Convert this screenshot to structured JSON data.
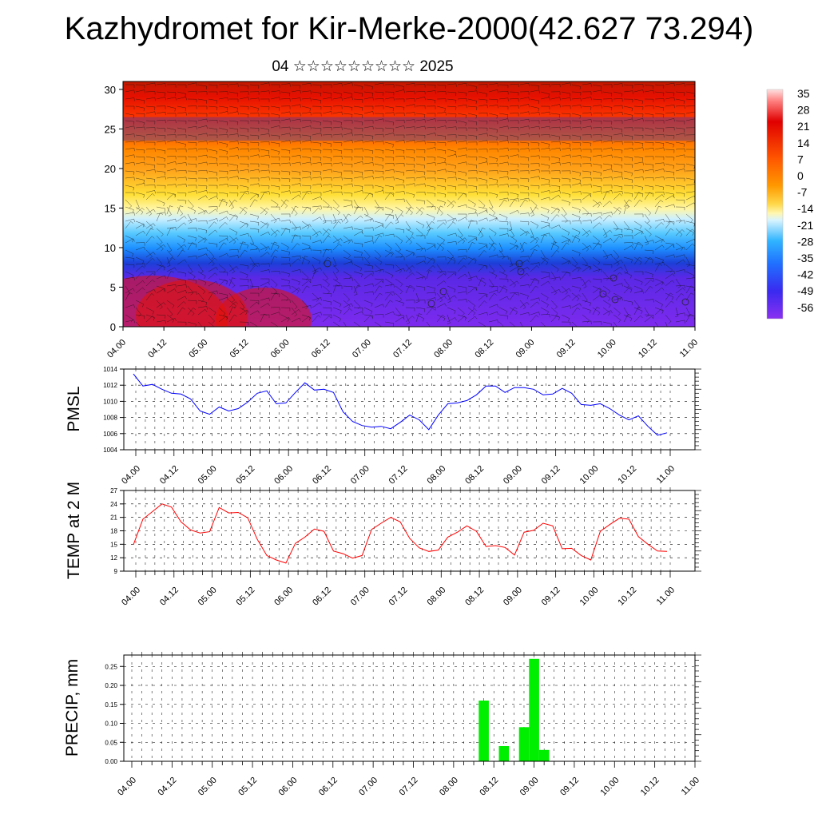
{
  "title": "Kazhydromet for Kir-Merke-2000(42.627 73.294)",
  "subtitle": "04 ☆☆☆☆☆☆☆☆☆ 2025",
  "time_ticks": [
    "04.00",
    "04.12",
    "05.00",
    "05.12",
    "06.00",
    "06.12",
    "07.00",
    "07.12",
    "08.00",
    "08.12",
    "09.00",
    "09.12",
    "10.00",
    "10.12",
    "11.00"
  ],
  "chart_data": [
    {
      "type": "heatmap",
      "name": "temperature cross-section with wind barbs",
      "ylim": [
        0,
        31
      ],
      "yticks": [
        0,
        5,
        10,
        15,
        20,
        25,
        30
      ],
      "legend_labels": [
        "35",
        "28",
        "21",
        "14",
        "7",
        "0",
        "-7",
        "-14",
        "-21",
        "-28",
        "-35",
        "-42",
        "-49",
        "-56"
      ],
      "legend_placement": "right"
    },
    {
      "type": "line",
      "ylabel": "PMSL",
      "ylim": [
        1004,
        1014
      ],
      "yticks": [
        1004,
        1006,
        1008,
        1010,
        1012,
        1014
      ],
      "color": "#0000ff",
      "values": [
        1013.4,
        1011.9,
        1012.1,
        1011.5,
        1011.0,
        1010.9,
        1010.3,
        1008.8,
        1008.4,
        1009.3,
        1008.8,
        1009.1,
        1009.9,
        1011.0,
        1011.3,
        1009.7,
        1009.8,
        1011.1,
        1012.3,
        1011.4,
        1011.5,
        1011.1,
        1008.7,
        1007.5,
        1007.0,
        1006.8,
        1006.9,
        1006.6,
        1007.4,
        1008.3,
        1007.7,
        1006.5,
        1008.3,
        1009.7,
        1009.8,
        1010.1,
        1010.8,
        1011.9,
        1011.9,
        1011.1,
        1011.7,
        1011.7,
        1011.5,
        1010.8,
        1010.9,
        1011.6,
        1011.0,
        1009.6,
        1009.5,
        1009.7,
        1009.1,
        1008.3,
        1007.7,
        1008.2,
        1006.9,
        1005.8,
        1006.1
      ]
    },
    {
      "type": "line",
      "ylabel": "TEMP at 2 M",
      "ylim": [
        9,
        27
      ],
      "yticks": [
        9,
        12,
        15,
        18,
        21,
        24,
        27
      ],
      "color": "#ff0000",
      "values": [
        14.9,
        20.6,
        22.3,
        24.0,
        23.3,
        20.0,
        18.2,
        17.5,
        17.8,
        23.2,
        22.0,
        22.1,
        20.9,
        16.1,
        12.5,
        11.5,
        10.8,
        15.2,
        16.6,
        18.4,
        17.9,
        13.5,
        12.9,
        11.9,
        12.5,
        18.3,
        19.7,
        21.0,
        20.0,
        16.3,
        14.2,
        13.4,
        13.7,
        16.6,
        17.7,
        19.1,
        17.9,
        14.5,
        14.7,
        14.3,
        12.6,
        17.7,
        18.1,
        19.7,
        19.1,
        14.0,
        14.1,
        12.5,
        11.5,
        17.9,
        19.4,
        20.8,
        20.6,
        16.7,
        15.0,
        13.5,
        13.4
      ]
    },
    {
      "type": "bar",
      "ylabel": "PRECIP, mm",
      "ylim": [
        0,
        0.28
      ],
      "yticks": [
        "0.00",
        "0.05",
        "0.10",
        "0.15",
        "0.20",
        "0.25"
      ],
      "color": "#00ee00",
      "bars": [
        {
          "x": "08.09",
          "value": 0.16
        },
        {
          "x": "08.15",
          "value": 0.04
        },
        {
          "x": "08.21",
          "value": 0.09
        },
        {
          "x": "09.00",
          "value": 0.27
        },
        {
          "x": "09.03",
          "value": 0.03
        }
      ]
    }
  ]
}
